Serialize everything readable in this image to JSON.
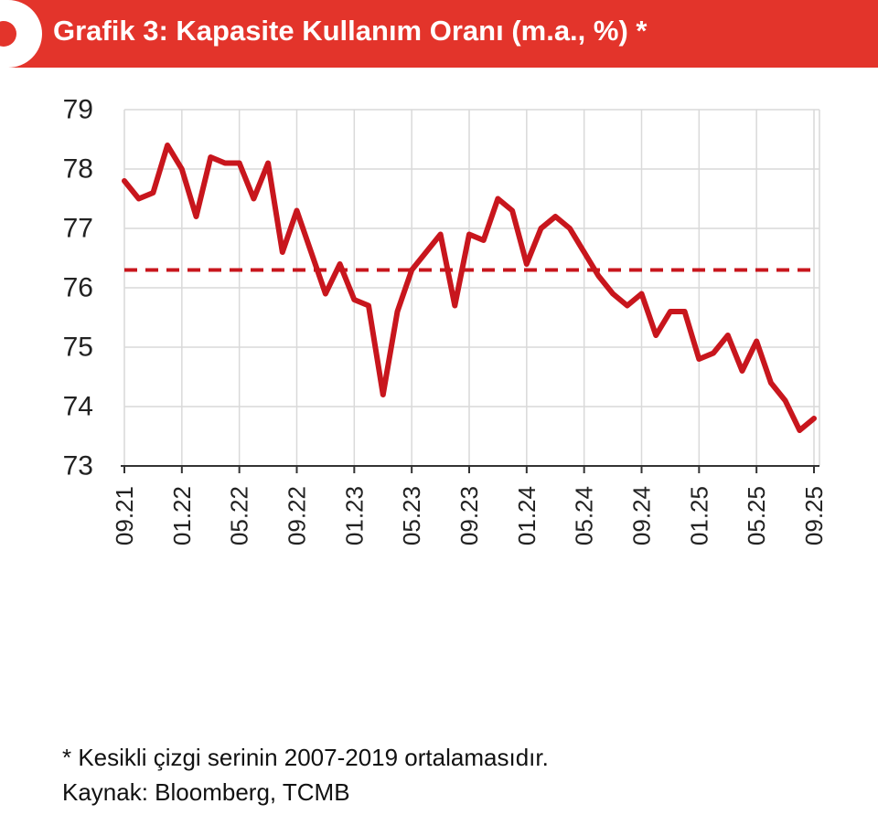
{
  "header": {
    "title": "Grafik 3: Kapasite Kullanım Oranı (m.a., %) *",
    "accent_color": "#e3342b"
  },
  "chart_data": {
    "type": "line",
    "title": "Grafik 3: Kapasite Kullanım Oranı (m.a., %) *",
    "xlabel": "",
    "ylabel": "",
    "ylim": [
      73,
      79
    ],
    "yticks": [
      73,
      74,
      75,
      76,
      77,
      78,
      79
    ],
    "grid": "vertical",
    "x_tick_labels": [
      "09.21",
      "01.22",
      "05.22",
      "09.22",
      "01.23",
      "05.23",
      "09.23",
      "01.24",
      "05.24",
      "09.24",
      "01.25",
      "05.25",
      "09.25"
    ],
    "x": [
      "09.21",
      "10.21",
      "11.21",
      "12.21",
      "01.22",
      "02.22",
      "03.22",
      "04.22",
      "05.22",
      "06.22",
      "07.22",
      "08.22",
      "09.22",
      "10.22",
      "11.22",
      "12.22",
      "01.23",
      "02.23",
      "03.23",
      "04.23",
      "05.23",
      "06.23",
      "07.23",
      "08.23",
      "09.23",
      "10.23",
      "11.23",
      "12.23",
      "01.24",
      "02.24",
      "03.24",
      "04.24",
      "05.24",
      "06.24",
      "07.24",
      "08.24",
      "09.24",
      "10.24",
      "11.24",
      "12.24",
      "01.25",
      "02.25",
      "03.25",
      "04.25",
      "05.25",
      "06.25",
      "07.25",
      "08.25",
      "09.25"
    ],
    "series": [
      {
        "color": "#c8161d",
        "values": [
          77.8,
          77.5,
          77.6,
          78.4,
          78.0,
          77.2,
          78.2,
          78.1,
          78.1,
          77.5,
          78.1,
          76.6,
          77.3,
          76.6,
          75.9,
          76.4,
          75.8,
          75.7,
          74.2,
          75.6,
          76.3,
          76.6,
          76.9,
          75.7,
          76.9,
          76.8,
          77.5,
          77.3,
          76.4,
          77.0,
          77.2,
          77.0,
          76.6,
          76.2,
          75.9,
          75.7,
          75.9,
          75.2,
          75.6,
          75.6,
          74.8,
          74.9,
          75.2,
          74.6,
          75.1,
          74.4,
          74.1,
          73.6,
          73.8
        ]
      }
    ],
    "reference_line": {
      "value": 76.3,
      "style": "dashed",
      "color": "#c8161d"
    }
  },
  "footnotes": {
    "note": "* Kesikli çizgi serinin 2007-2019 ortalamasıdır.",
    "source": "Kaynak: Bloomberg, TCMB"
  }
}
